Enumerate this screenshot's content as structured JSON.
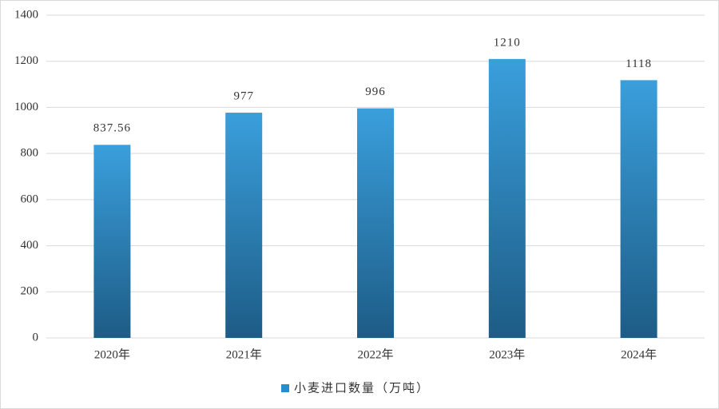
{
  "chart_data": {
    "type": "bar",
    "categories": [
      "2020年",
      "2021年",
      "2022年",
      "2023年",
      "2024年"
    ],
    "series": [
      {
        "name": "小麦进口数量（万吨）",
        "color": "#2a8cc8",
        "values": [
          837.56,
          977,
          996,
          1210,
          1118
        ]
      }
    ],
    "ylim": [
      0,
      1400
    ],
    "yticks": [
      0,
      200,
      400,
      600,
      800,
      1000,
      1200,
      1400
    ],
    "grid": true,
    "legend": "bottom"
  }
}
